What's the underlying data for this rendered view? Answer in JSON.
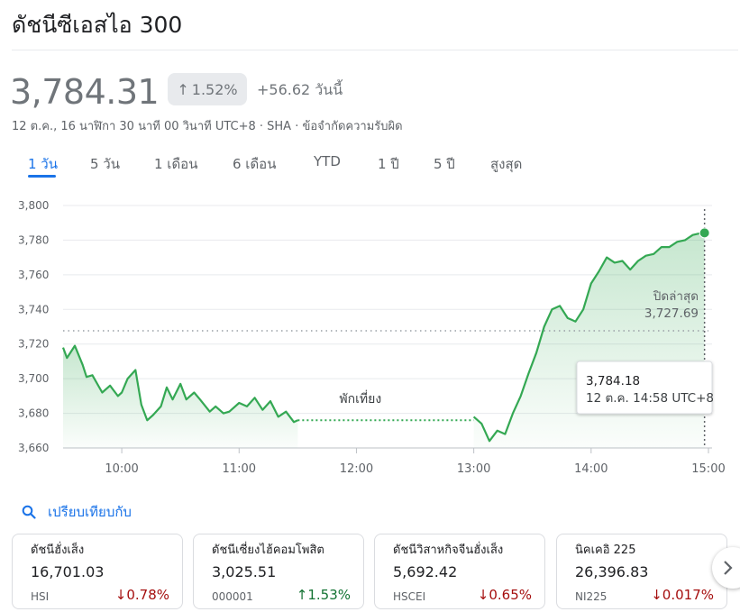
{
  "header": {
    "title": "ดัชนีซีเอสไอ 300",
    "price": "3,784.31",
    "pct_change": "1.52%",
    "abs_change": "+56.62 วันนี้",
    "meta": "12 ต.ค., 16 นาฬิกา 30 นาที 00 วินาที UTC+8 · SHA · ข้อจำกัดความรับผิด"
  },
  "tabs": [
    "1 วัน",
    "5 วัน",
    "1 เดือน",
    "6 เดือน",
    "YTD",
    "1 ปี",
    "5 ปี",
    "สูงสุด"
  ],
  "active_tab": "1 วัน",
  "colors": {
    "line": "#34a853",
    "accent": "#1a73e8",
    "down": "#a50e0e",
    "up": "#137333"
  },
  "chart_data": {
    "type": "area",
    "ylim": [
      3660,
      3800
    ],
    "y_ticks": [
      "3,800",
      "3,780",
      "3,760",
      "3,740",
      "3,720",
      "3,700",
      "3,680",
      "3,660"
    ],
    "x_ticks": [
      "10:00",
      "11:00",
      "12:00",
      "13:00",
      "15:00"
    ],
    "x_tick_14": "14:00",
    "previous_close": {
      "label": "ปิดล่าสุด",
      "value_label": "3,727.69",
      "value": 3727.69
    },
    "lunch_break": {
      "label": "พักเที่ยง",
      "value": 3676
    },
    "tooltip": {
      "value": "3,784.18",
      "time": "12 ต.ค. 14:58 UTC+8"
    },
    "series": [
      {
        "x": [
          "09:30",
          "09:32",
          "09:36",
          "09:40",
          "09:42",
          "09:45",
          "09:50",
          "09:54",
          "09:58",
          "10:00",
          "10:03",
          "10:07",
          "10:10",
          "10:13",
          "10:16",
          "10:20",
          "10:23",
          "10:26",
          "10:30",
          "10:33",
          "10:37",
          "10:40",
          "10:45",
          "10:48",
          "10:52",
          "10:55",
          "11:00",
          "11:04",
          "11:08",
          "11:12",
          "11:16",
          "11:20",
          "11:24",
          "11:28",
          "11:30"
        ],
        "values": [
          3718,
          3712,
          3719,
          3708,
          3701,
          3702,
          3692,
          3696,
          3690,
          3692,
          3700,
          3705,
          3685,
          3676,
          3679,
          3684,
          3695,
          3688,
          3697,
          3688,
          3692,
          3688,
          3681,
          3684,
          3680,
          3681,
          3686,
          3684,
          3689,
          3682,
          3687,
          3678,
          3681,
          3675,
          3676
        ]
      },
      {
        "x": [
          "13:00",
          "13:04",
          "13:08",
          "13:12",
          "13:16",
          "13:20",
          "13:24",
          "13:28",
          "13:32",
          "13:36",
          "13:40",
          "13:44",
          "13:48",
          "13:52",
          "13:56",
          "14:00",
          "14:04",
          "14:08",
          "14:12",
          "14:16",
          "14:20",
          "14:24",
          "14:28",
          "14:32",
          "14:36",
          "14:40",
          "14:44",
          "14:48",
          "14:52",
          "14:56",
          "14:58"
        ],
        "values": [
          3678,
          3674,
          3664,
          3670,
          3668,
          3680,
          3690,
          3703,
          3715,
          3730,
          3740,
          3742,
          3735,
          3733,
          3740,
          3755,
          3762,
          3770,
          3767,
          3768,
          3763,
          3768,
          3771,
          3772,
          3776,
          3776,
          3779,
          3780,
          3783,
          3784,
          3784.18
        ]
      }
    ]
  },
  "compare": {
    "label": "เปรียบเทียบกับ"
  },
  "cards": [
    {
      "name": "ดัชนีฮั่งเส็ง",
      "value": "16,701.03",
      "symbol": "HSI",
      "change": "0.78%",
      "direction": "down"
    },
    {
      "name": "ดัชนีเซี่ยงไฮ้คอมโพสิต",
      "value": "3,025.51",
      "symbol": "000001",
      "change": "1.53%",
      "direction": "up"
    },
    {
      "name": "ดัชนีวิสาหกิจจีนฮั่งเส็ง",
      "value": "5,692.42",
      "symbol": "HSCEI",
      "change": "0.65%",
      "direction": "down"
    },
    {
      "name": "นิคเคอิ 225",
      "value": "26,396.83",
      "symbol": "NI225",
      "change": "0.017%",
      "direction": "down"
    }
  ],
  "icons": {
    "search": "search-icon",
    "next": "chevron-right-icon",
    "up": "arrow-up-icon",
    "down": "arrow-down-icon"
  }
}
